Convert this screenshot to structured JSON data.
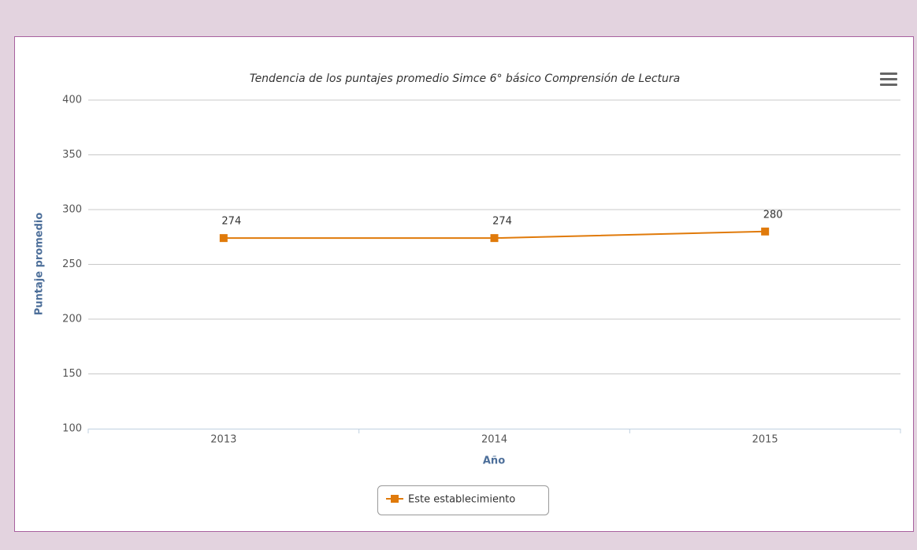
{
  "chart_data": {
    "type": "line",
    "title": "Tendencia de los puntajes promedio Simce 6° básico Comprensión de Lectura",
    "x_label": "Año",
    "y_label": "Puntaje promedio",
    "categories": [
      "2013",
      "2014",
      "2015"
    ],
    "series": [
      {
        "name": "Este establecimiento",
        "color": "#e07a0a",
        "values": [
          274,
          274,
          280
        ]
      }
    ],
    "ylim": [
      100,
      400
    ],
    "yticks": [
      100,
      150,
      200,
      250,
      300,
      350,
      400
    ],
    "grid": true,
    "legend": "bottom"
  }
}
